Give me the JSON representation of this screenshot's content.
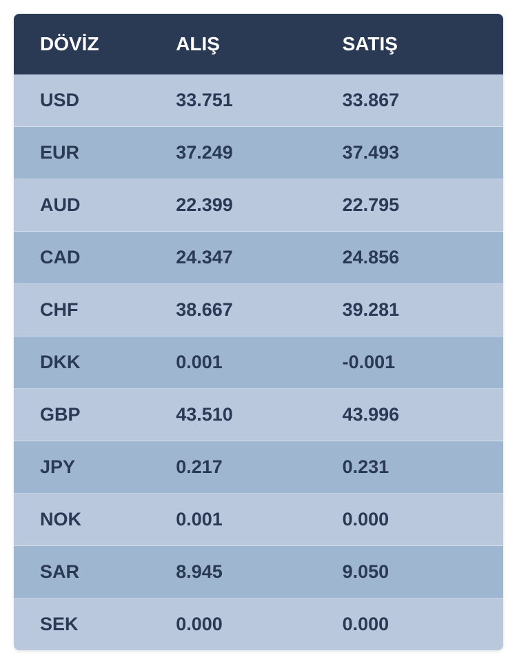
{
  "table": {
    "type": "table",
    "columns": [
      "DÖVİZ",
      "ALIŞ",
      "SATIŞ"
    ],
    "rows": [
      {
        "currency": "USD",
        "buy": "33.751",
        "sell": "33.867"
      },
      {
        "currency": "EUR",
        "buy": "37.249",
        "sell": "37.493"
      },
      {
        "currency": "AUD",
        "buy": "22.399",
        "sell": "22.795"
      },
      {
        "currency": "CAD",
        "buy": "24.347",
        "sell": "24.856"
      },
      {
        "currency": "CHF",
        "buy": "38.667",
        "sell": "39.281"
      },
      {
        "currency": "DKK",
        "buy": "0.001",
        "sell": "-0.001"
      },
      {
        "currency": "GBP",
        "buy": "43.510",
        "sell": "43.996"
      },
      {
        "currency": "JPY",
        "buy": "0.217",
        "sell": "0.231"
      },
      {
        "currency": "NOK",
        "buy": "0.001",
        "sell": "0.000"
      },
      {
        "currency": "SAR",
        "buy": "8.945",
        "sell": "9.050"
      },
      {
        "currency": "SEK",
        "buy": "0.000",
        "sell": "0.000"
      }
    ],
    "header_background_color": "#2a3a54",
    "header_text_color": "#ffffff",
    "row_odd_color": "#bac8de",
    "row_even_color": "#9fb6d1",
    "row_text_color": "#2a3a54",
    "header_fontsize": 28,
    "row_fontsize": 27
  }
}
